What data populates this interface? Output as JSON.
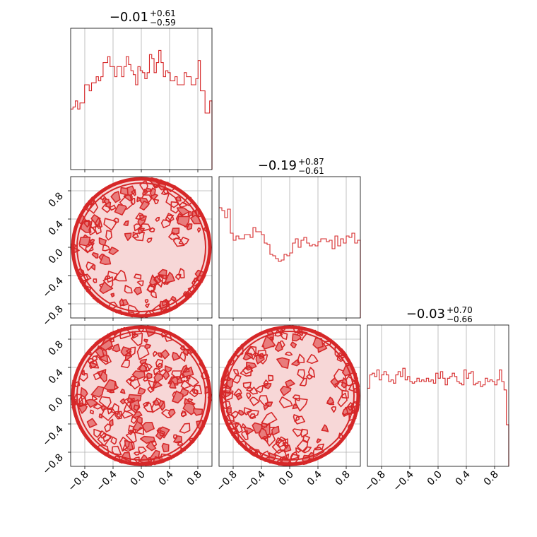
{
  "chart_data": {
    "type": "corner",
    "color": "#d62728",
    "tick_values": [
      -0.8,
      -0.4,
      0.0,
      0.4,
      0.8
    ],
    "tick_labels": [
      "−0.8",
      "−0.4",
      "0.0",
      "0.4",
      "0.8"
    ],
    "xlim": [
      -1.0,
      1.0
    ],
    "ylim": [
      -1.0,
      1.0
    ],
    "grid": true,
    "histograms": [
      {
        "param_index": 0,
        "title": {
          "median": "−0.01",
          "plus": "+0.61",
          "minus": "−0.59"
        },
        "counts": [
          30,
          31,
          34,
          30,
          33,
          33,
          42,
          42,
          39,
          43,
          43,
          46,
          44,
          46,
          53,
          53,
          56,
          51,
          51,
          46,
          51,
          51,
          46,
          51,
          56,
          52,
          49,
          47,
          42,
          51,
          49,
          48,
          45,
          48,
          57,
          55,
          48,
          53,
          59,
          53,
          46,
          49,
          48,
          44,
          44,
          46,
          42,
          42,
          42,
          48,
          46,
          46,
          42,
          42,
          45,
          54,
          39,
          39,
          28,
          28,
          34
        ],
        "max_count": 70
      },
      {
        "param_index": 1,
        "title": {
          "median": "−0.19",
          "plus": "+0.87",
          "minus": "−0.61"
        },
        "counts": [
          78,
          76,
          71,
          77,
          60,
          55,
          58,
          56,
          56,
          59,
          59,
          57,
          64,
          61,
          61,
          59,
          53,
          52,
          45,
          44,
          42,
          40,
          41,
          45,
          44,
          46,
          53,
          56,
          50,
          55,
          57,
          53,
          51,
          52,
          51,
          54,
          56,
          56,
          54,
          55,
          49,
          58,
          51,
          56,
          53,
          58,
          57,
          60,
          53,
          55
        ],
        "max_count": 100
      },
      {
        "param_index": 2,
        "title": {
          "median": "−0.03",
          "plus": "+0.70",
          "minus": "−0.66"
        },
        "counts": [
          47,
          55,
          56,
          54,
          58,
          52,
          55,
          57,
          55,
          51,
          52,
          50,
          55,
          57,
          54,
          59,
          52,
          54,
          51,
          50,
          51,
          53,
          51,
          52,
          51,
          53,
          51,
          52,
          50,
          56,
          53,
          57,
          53,
          49,
          53,
          54,
          56,
          54,
          51,
          50,
          49,
          58,
          53,
          56,
          57,
          49,
          50,
          51,
          48,
          49,
          53,
          51,
          52,
          51,
          49,
          52,
          58,
          51,
          46,
          25
        ],
        "max_count": 85
      }
    ],
    "scatter_panels": [
      {
        "x_param": 0,
        "y_param": 1,
        "pattern": "disk-with-gap"
      },
      {
        "x_param": 0,
        "y_param": 2,
        "pattern": "full-disk"
      },
      {
        "x_param": 1,
        "y_param": 2,
        "pattern": "disk-sparse-right"
      }
    ],
    "contour_levels": 4
  }
}
